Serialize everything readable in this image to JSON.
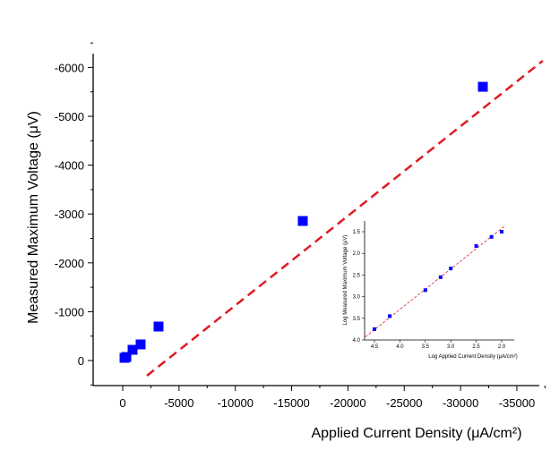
{
  "chart_data": [
    {
      "type": "scatter",
      "xlabel": "Applied Current Density (μA/cm²)",
      "ylabel": "Measured Maximum Voltage (μV)",
      "xlim": [
        -37500,
        2500
      ],
      "ylim": [
        500,
        -6500
      ],
      "x_ticks": [
        0,
        -5000,
        -10000,
        -15000,
        -20000,
        -25000,
        -30000,
        -35000
      ],
      "y_ticks": [
        0,
        -1000,
        -2000,
        -3000,
        -4000,
        -5000,
        -6000
      ],
      "grid": false,
      "marker_color": "#0000ff",
      "fit_color": "#e01b24",
      "x": [
        -160,
        -320,
        -875,
        -1590,
        -3180,
        -15990,
        -31980
      ],
      "y": [
        -55,
        -73,
        -220,
        -330,
        -696,
        -2857,
        -5604
      ],
      "fit_line": {
        "x": [
          -2150,
          -37300
        ],
        "y": [
          311,
          -6135
        ]
      }
    },
    {
      "type": "scatter",
      "xlabel": "Log Applied Current Density (μA/cm²)",
      "ylabel": "Log Measured Maximum Voltage (μV)",
      "xlim": [
        4.75,
        1.85
      ],
      "ylim": [
        1.3,
        4.0
      ],
      "x_ticks": [
        "4.5",
        "4.0",
        "3.5",
        "3.0",
        "2.5",
        "2.0"
      ],
      "y_ticks": [
        "1.5",
        "2.0",
        "2.5",
        "3.0",
        "3.5",
        "4.0"
      ],
      "grid": false,
      "marker_color": "#0000ff",
      "fit_color": "#e01b24",
      "x": [
        4.5,
        4.2,
        3.5,
        3.2,
        3.0,
        2.5,
        2.2,
        2.0
      ],
      "y": [
        3.75,
        3.45,
        2.85,
        2.55,
        2.35,
        1.83,
        1.62,
        1.5
      ],
      "fit_line": {
        "x": [
          4.68,
          1.92
        ],
        "y": [
          3.93,
          1.35
        ]
      }
    }
  ]
}
